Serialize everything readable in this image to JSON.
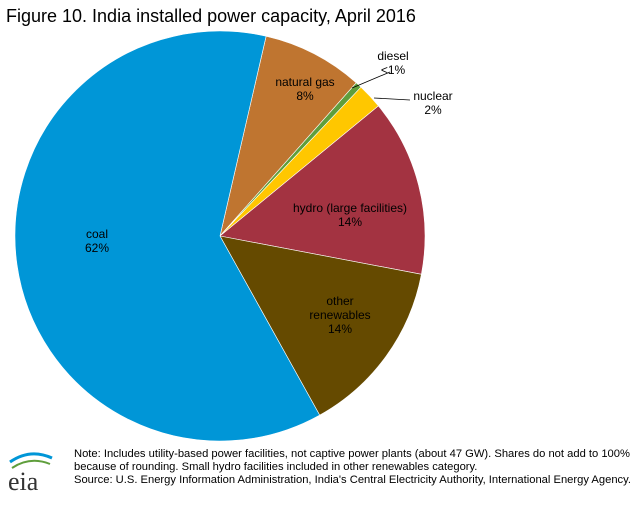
{
  "chart_data": {
    "type": "pie",
    "title": "Figure 10. India installed power capacity, April 2016",
    "categories": [
      "natural gas",
      "diesel",
      "nuclear",
      "hydro (large facilities)",
      "other renewables",
      "coal"
    ],
    "values": [
      8,
      0.5,
      2,
      14,
      14,
      62
    ],
    "value_labels": [
      "8%",
      "<1%",
      "2%",
      "14%",
      "14%",
      "62%"
    ],
    "colors": [
      "#bf7530",
      "#5f9e3c",
      "#ffc700",
      "#a33341",
      "#654a00",
      "#0096d7"
    ],
    "note": "Note: Includes utility-based power facilities, not captive power plants (about 47 GW). Shares do not add to 100% because of rounding. Small hydro facilities included in other renewables category.",
    "source": "Source: U.S. Energy Information Administration, India's Central Electricity Authority, International Energy Agency."
  }
}
